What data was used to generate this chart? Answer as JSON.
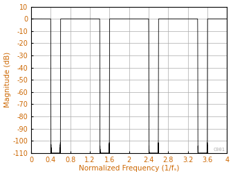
{
  "title": "",
  "xlabel": "Normalized Frequency (1/fₛ)",
  "ylabel": "Magnitude (dB)",
  "xlim": [
    0,
    4
  ],
  "ylim": [
    -110,
    10
  ],
  "xticks": [
    0,
    0.4,
    0.8,
    1.2,
    1.6,
    2.0,
    2.4,
    2.8,
    3.2,
    3.6,
    4.0
  ],
  "yticks": [
    10,
    0,
    -10,
    -20,
    -30,
    -40,
    -50,
    -60,
    -70,
    -80,
    -90,
    -100,
    -110
  ],
  "line_color": "#000000",
  "grid_color": "#aaaaaa",
  "background_color": "#ffffff",
  "label_color": "#cc6600",
  "watermark": "C001",
  "watermark_color": "#aaaaaa",
  "figsize": [
    3.37,
    2.54
  ],
  "dpi": 100
}
